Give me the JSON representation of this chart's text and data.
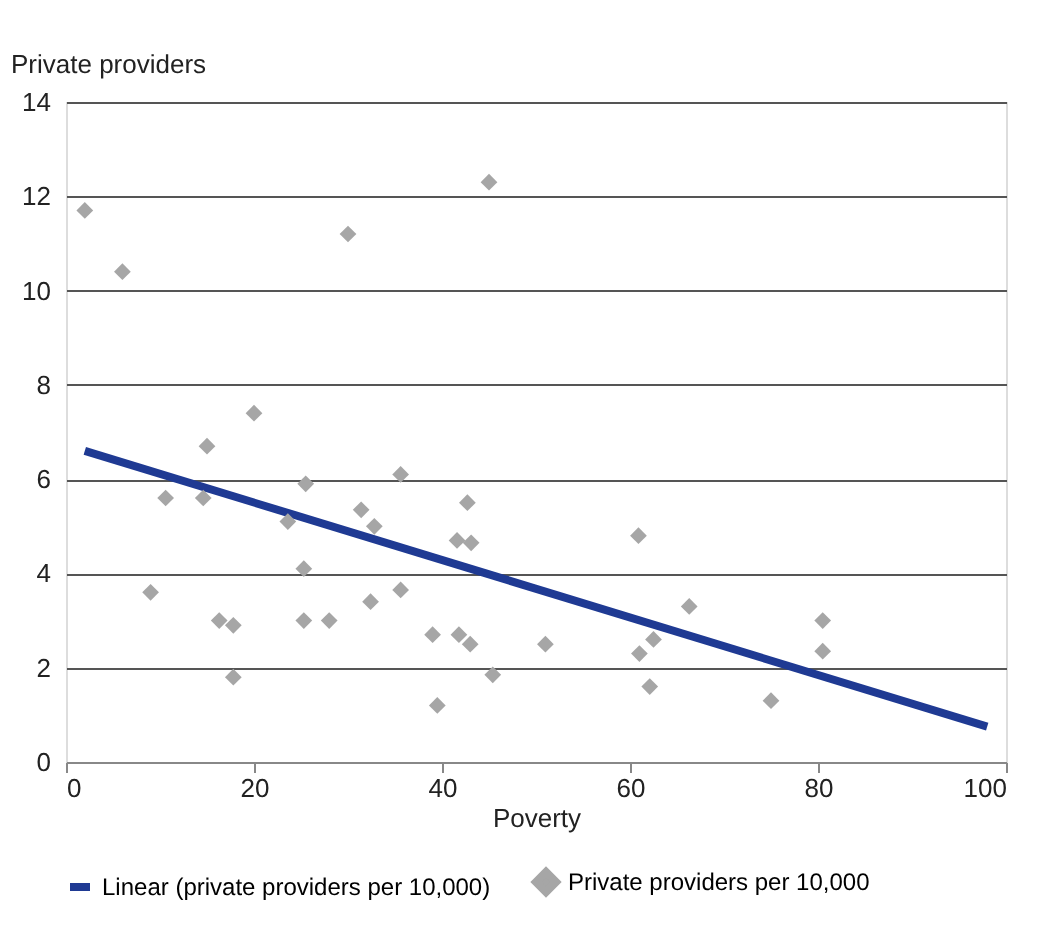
{
  "chart_data": {
    "type": "scatter",
    "xlabel": "Poverty",
    "ylabel": "Private providers",
    "xlim": [
      0,
      100
    ],
    "xticks": [
      0,
      20,
      40,
      60,
      80,
      100
    ],
    "ylim": [
      0,
      14
    ],
    "yticks": [
      0,
      2,
      4,
      6,
      8,
      10,
      12,
      14
    ],
    "grid": "y",
    "legend": "bottom",
    "series": [
      {
        "name": "Linear (private providers per 10,000)",
        "type": "line",
        "color": "#1f3a93",
        "line_style": "solid",
        "x": [
          2,
          98
        ],
        "values": [
          6.6,
          0.75
        ]
      },
      {
        "name": "Private providers per 10,000",
        "type": "scatter",
        "color": "#a6a6a6",
        "marker": "diamond",
        "x": [
          2,
          6,
          9,
          10.6,
          14.6,
          15,
          16.3,
          17.8,
          17.8,
          20,
          23.6,
          25.5,
          25.3,
          25.3,
          30,
          28,
          31.4,
          32.8,
          32.4,
          35.6,
          35.6,
          39,
          39.5,
          41.6,
          41.8,
          42.7,
          43,
          43.1,
          45,
          45.4,
          51,
          60.9,
          61,
          62.1,
          62.5,
          66.3,
          75,
          80.5,
          80.5
        ],
        "values": [
          11.7,
          10.4,
          3.6,
          5.6,
          5.6,
          6.7,
          3.0,
          2.9,
          1.8,
          7.4,
          5.1,
          5.9,
          4.1,
          3.0,
          11.2,
          3.0,
          5.35,
          5.0,
          3.4,
          6.1,
          3.65,
          2.7,
          1.2,
          4.7,
          2.7,
          5.5,
          2.5,
          4.65,
          12.3,
          1.85,
          2.5,
          4.8,
          2.3,
          1.6,
          2.6,
          3.3,
          1.3,
          3.0,
          2.35
        ]
      }
    ]
  }
}
